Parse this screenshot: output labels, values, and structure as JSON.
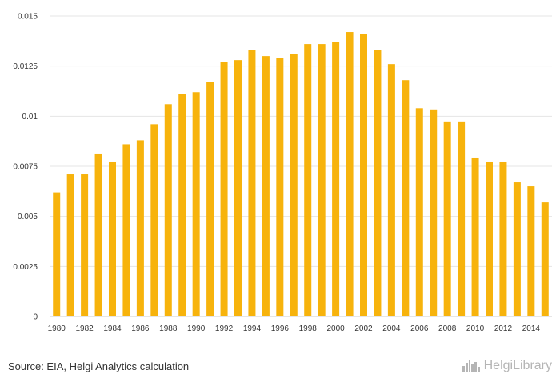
{
  "chart_data": {
    "type": "bar",
    "title": "",
    "xlabel": "",
    "ylabel": "",
    "ylim": [
      0,
      0.015
    ],
    "yticks": [
      "0",
      "0.0025",
      "0.005",
      "0.0075",
      "0.01",
      "0.0125",
      "0.015"
    ],
    "categories": [
      "1980",
      "1981",
      "1982",
      "1983",
      "1984",
      "1985",
      "1986",
      "1987",
      "1988",
      "1989",
      "1990",
      "1991",
      "1992",
      "1993",
      "1994",
      "1995",
      "1996",
      "1997",
      "1998",
      "1999",
      "2000",
      "2001",
      "2002",
      "2003",
      "2004",
      "2005",
      "2006",
      "2007",
      "2008",
      "2009",
      "2010",
      "2011",
      "2012",
      "2013",
      "2014",
      "2015"
    ],
    "xtick_labels": [
      "1980",
      "1982",
      "1984",
      "1986",
      "1988",
      "1990",
      "1992",
      "1994",
      "1996",
      "1998",
      "2000",
      "2002",
      "2004",
      "2006",
      "2008",
      "2010",
      "2012",
      "2014"
    ],
    "values": [
      0.0062,
      0.0071,
      0.0071,
      0.0081,
      0.0077,
      0.0086,
      0.0088,
      0.0096,
      0.0106,
      0.0111,
      0.0112,
      0.0117,
      0.0127,
      0.0128,
      0.0133,
      0.013,
      0.0129,
      0.0131,
      0.0136,
      0.0136,
      0.0137,
      0.0142,
      0.0141,
      0.0133,
      0.0126,
      0.0118,
      0.0104,
      0.0103,
      0.0097,
      0.0097,
      0.0079,
      0.0077,
      0.0077,
      0.0067,
      0.0065,
      0.0057
    ],
    "grid": true,
    "legend": "none"
  },
  "colors": {
    "bar": "#f7b30c",
    "grid": "#e5e5e5",
    "axis": "#cccccc",
    "text": "#333333",
    "brand": "#b5b5b5"
  },
  "footer": {
    "source": "Source: EIA, Helgi Analytics calculation",
    "brand": "HelgiLibrary",
    "brand_icon": "city-skyline-icon"
  }
}
